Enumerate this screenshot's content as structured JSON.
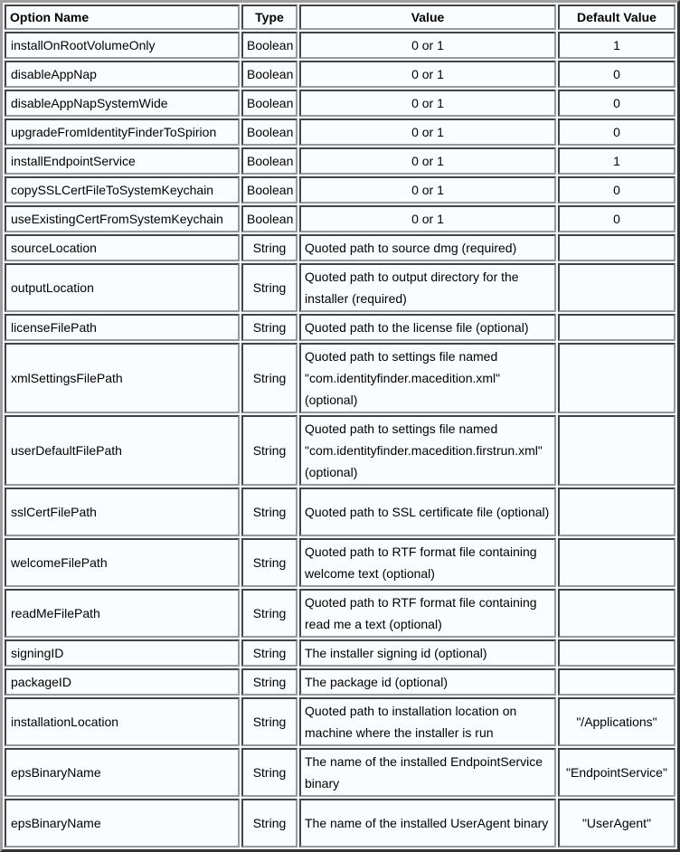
{
  "headers": [
    "Option Name",
    "Type",
    "Value",
    "Default Value"
  ],
  "rows": [
    {
      "name": "installOnRootVolumeOnly",
      "type": "Boolean",
      "value": "0 or 1",
      "default": "1"
    },
    {
      "name": "disableAppNap",
      "type": "Boolean",
      "value": "0 or 1",
      "default": "0"
    },
    {
      "name": "disableAppNapSystemWide",
      "type": "Boolean",
      "value": "0 or 1",
      "default": "0"
    },
    {
      "name": "upgradeFromIdentityFinderToSpirion",
      "type": "Boolean",
      "value": "0 or 1",
      "default": "0"
    },
    {
      "name": "installEndpointService",
      "type": "Boolean",
      "value": "0 or 1",
      "default": "1"
    },
    {
      "name": "copySSLCertFileToSystemKeychain",
      "type": "Boolean",
      "value": "0 or 1",
      "default": "0"
    },
    {
      "name": "useExistingCertFromSystemKeychain",
      "type": "Boolean",
      "value": "0 or 1",
      "default": "0"
    },
    {
      "name": "sourceLocation",
      "type": "String",
      "value": "Quoted path to source dmg (required)",
      "default": ""
    },
    {
      "name": "outputLocation",
      "type": "String",
      "value": "Quoted path to output directory for the installer (required)",
      "default": ""
    },
    {
      "name": "licenseFilePath",
      "type": "String",
      "value": "Quoted path to the license file (optional)",
      "default": ""
    },
    {
      "name": "xmlSettingsFilePath",
      "type": "String",
      "value": "Quoted path to settings file named \"com.identityfinder.macedition.xml\" (optional)",
      "default": ""
    },
    {
      "name": "userDefaultFilePath",
      "type": "String",
      "value": "Quoted path to settings file named \"com.identityfinder.macedition.firstrun.xml\" (optional)",
      "default": ""
    },
    {
      "name": "sslCertFilePath",
      "type": "String",
      "value": "Quoted path to SSL certificate file (optional)",
      "default": ""
    },
    {
      "name": "welcomeFilePath",
      "type": "String",
      "value": "Quoted path to RTF format file containing welcome text (optional)",
      "default": ""
    },
    {
      "name": "readMeFilePath",
      "type": "String",
      "value": "Quoted path to RTF format file containing read me a text (optional)",
      "default": ""
    },
    {
      "name": "signingID",
      "type": "String",
      "value": "The installer signing id (optional)",
      "default": ""
    },
    {
      "name": "packageID",
      "type": "String",
      "value": "The package id (optional)",
      "default": ""
    },
    {
      "name": "installationLocation",
      "type": "String",
      "value": "Quoted path to installation location on machine where the installer is run",
      "default": "\"/Applications\""
    },
    {
      "name": "epsBinaryName",
      "type": "String",
      "value": "The name of the installed EndpointService binary",
      "default": "\"EndpointService\""
    },
    {
      "name": "epsBinaryName",
      "type": "String",
      "value": "The name of the installed UserAgent binary",
      "default": "\"UserAgent\""
    }
  ]
}
